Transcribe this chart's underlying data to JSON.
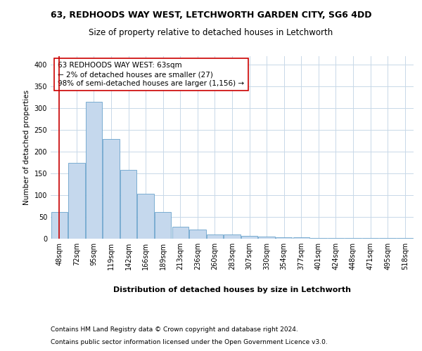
{
  "title": "63, REDHOODS WAY WEST, LETCHWORTH GARDEN CITY, SG6 4DD",
  "subtitle": "Size of property relative to detached houses in Letchworth",
  "xlabel": "Distribution of detached houses by size in Letchworth",
  "ylabel": "Number of detached properties",
  "bar_color": "#c5d8ed",
  "bar_edge_color": "#6aa3cc",
  "annotation_line_color": "#cc0000",
  "categories": [
    "48sqm",
    "72sqm",
    "95sqm",
    "119sqm",
    "142sqm",
    "166sqm",
    "189sqm",
    "213sqm",
    "236sqm",
    "260sqm",
    "283sqm",
    "307sqm",
    "330sqm",
    "354sqm",
    "377sqm",
    "401sqm",
    "424sqm",
    "448sqm",
    "471sqm",
    "495sqm",
    "518sqm"
  ],
  "values": [
    62,
    175,
    315,
    230,
    158,
    103,
    62,
    28,
    21,
    9,
    10,
    7,
    5,
    4,
    3,
    2,
    1,
    1,
    1,
    2,
    2
  ],
  "ylim": [
    0,
    420
  ],
  "yticks": [
    0,
    50,
    100,
    150,
    200,
    250,
    300,
    350,
    400
  ],
  "annotation_text": "63 REDHOODS WAY WEST: 63sqm\n← 2% of detached houses are smaller (27)\n98% of semi-detached houses are larger (1,156) →",
  "footer1": "Contains HM Land Registry data © Crown copyright and database right 2024.",
  "footer2": "Contains public sector information licensed under the Open Government Licence v3.0.",
  "background_color": "#ffffff",
  "grid_color": "#c8d8e8",
  "title_fontsize": 9,
  "subtitle_fontsize": 8.5,
  "ylabel_fontsize": 7.5,
  "xlabel_fontsize": 8,
  "tick_fontsize": 7,
  "annotation_fontsize": 7.5,
  "footer_fontsize": 6.5
}
